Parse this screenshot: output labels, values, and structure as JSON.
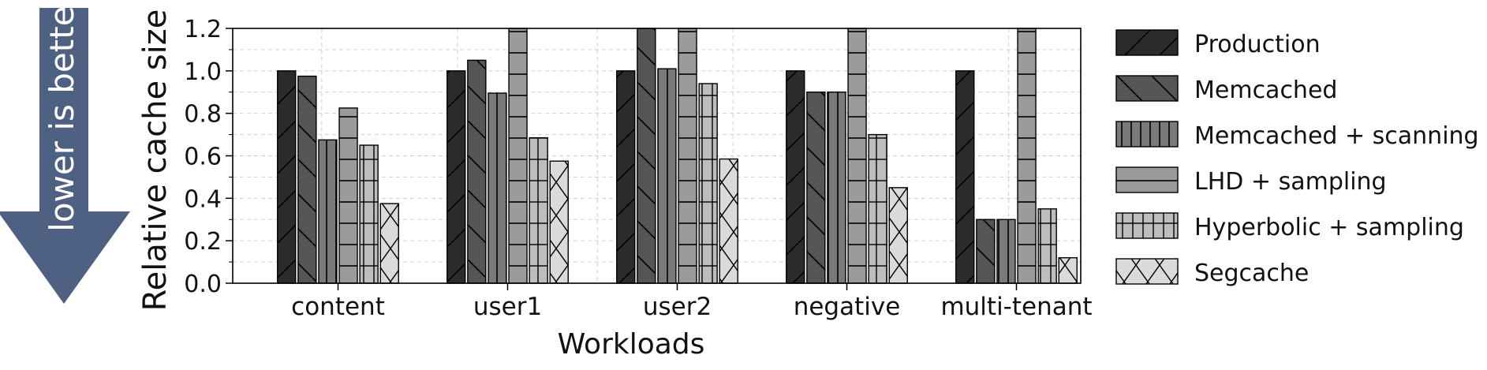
{
  "annotation": {
    "text": "lower is better",
    "arrow_color": "#4f6183"
  },
  "chart_data": {
    "type": "bar",
    "title": "",
    "xlabel": "Workloads",
    "ylabel": "Relative cache size",
    "ylim": [
      0,
      1.2
    ],
    "yticks": [
      0.0,
      0.2,
      0.4,
      0.6,
      0.8,
      1.0,
      1.2
    ],
    "yticks_labels": [
      "0.0",
      "0.2",
      "0.4",
      "0.6",
      "0.8",
      "1.0",
      "1.2"
    ],
    "grid": true,
    "legend_position": "right",
    "categories": [
      "content",
      "user1",
      "user2",
      "negative",
      "multi-tenant"
    ],
    "series": [
      {
        "name": "Production",
        "color": "#2b2b2b",
        "hatch": "diagonal",
        "values": [
          1.0,
          1.0,
          1.0,
          1.0,
          1.0
        ]
      },
      {
        "name": "Memcached",
        "color": "#555555",
        "hatch": "backslash",
        "values": [
          0.975,
          1.05,
          1.2,
          0.9,
          0.3
        ]
      },
      {
        "name": "Memcached + scanning",
        "color": "#7a7a7a",
        "hatch": "vertical",
        "values": [
          0.675,
          0.895,
          1.01,
          0.9,
          0.3
        ]
      },
      {
        "name": "LHD + sampling",
        "color": "#9b9b9b",
        "hatch": "horizontal",
        "values": [
          0.825,
          1.2,
          1.2,
          1.2,
          1.2
        ]
      },
      {
        "name": "Hyperbolic + sampling",
        "color": "#bdbdbd",
        "hatch": "grid",
        "values": [
          0.65,
          0.685,
          0.94,
          0.7,
          0.35
        ]
      },
      {
        "name": "Segcache",
        "color": "#dadada",
        "hatch": "cross",
        "values": [
          0.375,
          0.575,
          0.585,
          0.45,
          0.12
        ]
      }
    ]
  }
}
